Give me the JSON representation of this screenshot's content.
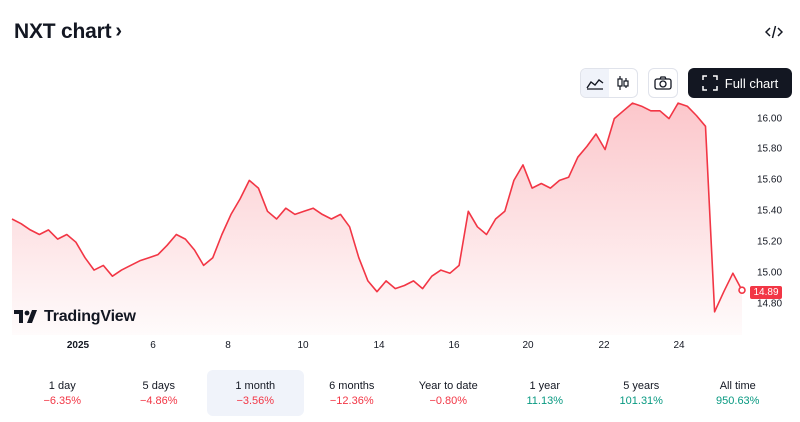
{
  "header": {
    "title": "NXT chart",
    "chevron": "›",
    "embed_icon": "code-icon"
  },
  "toolbar": {
    "line_icon": "area-chart-icon",
    "candle_icon": "candlestick-icon",
    "snapshot_icon": "camera-icon",
    "full_chart_label": "Full chart",
    "full_chart_icon": "fullscreen-icon"
  },
  "logo": {
    "text": "TradingView"
  },
  "colors": {
    "line": "#f23645",
    "positive": "#089981",
    "negative": "#f23645",
    "accent": "#131722"
  },
  "chart_data": {
    "type": "area",
    "x_ticks": [
      "2025",
      "6",
      "8",
      "10",
      "14",
      "16",
      "20",
      "22",
      "24"
    ],
    "y_ticks": [
      "16.00",
      "15.80",
      "15.60",
      "15.40",
      "15.20",
      "15.00",
      "14.80"
    ],
    "ylim": [
      14.6,
      16.12
    ],
    "last_price": "14.89",
    "series": [
      {
        "values": [
          15.35,
          15.32,
          15.28,
          15.25,
          15.28,
          15.22,
          15.25,
          15.2,
          15.1,
          15.02,
          15.05,
          14.98,
          15.02,
          15.05,
          15.08,
          15.1,
          15.12,
          15.18,
          15.25,
          15.22,
          15.15,
          15.05,
          15.1,
          15.25,
          15.38,
          15.48,
          15.6,
          15.55,
          15.4,
          15.35,
          15.42,
          15.38,
          15.4,
          15.42,
          15.38,
          15.35,
          15.38,
          15.3,
          15.1,
          14.95,
          14.88,
          14.95,
          14.9,
          14.92,
          14.95,
          14.9,
          14.98,
          15.02,
          15.0,
          15.05,
          15.4,
          15.3,
          15.25,
          15.35,
          15.4,
          15.6,
          15.7,
          15.55,
          15.58,
          15.55,
          15.6,
          15.62,
          15.75,
          15.82,
          15.9,
          15.8,
          16.0,
          16.05,
          16.1,
          16.08,
          16.05,
          16.05,
          16.0,
          16.1,
          16.08,
          16.02,
          15.95,
          14.75,
          14.88,
          15.0,
          14.89
        ]
      }
    ]
  },
  "periods": [
    {
      "label": "1 day",
      "change": "−6.35%",
      "sign": "neg"
    },
    {
      "label": "5 days",
      "change": "−4.86%",
      "sign": "neg"
    },
    {
      "label": "1 month",
      "change": "−3.56%",
      "sign": "neg",
      "active": true
    },
    {
      "label": "6 months",
      "change": "−12.36%",
      "sign": "neg"
    },
    {
      "label": "Year to date",
      "change": "−0.80%",
      "sign": "neg"
    },
    {
      "label": "1 year",
      "change": "11.13%",
      "sign": "pos"
    },
    {
      "label": "5 years",
      "change": "101.31%",
      "sign": "pos"
    },
    {
      "label": "All time",
      "change": "950.63%",
      "sign": "pos"
    }
  ]
}
